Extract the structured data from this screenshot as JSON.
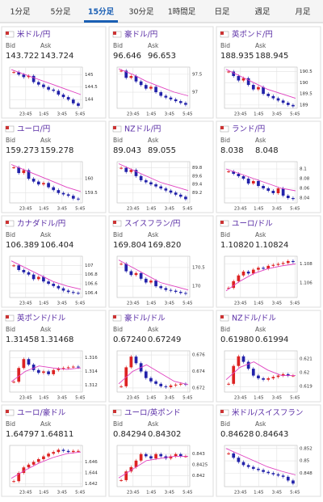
{
  "tabs": [
    "1分足",
    "5分足",
    "15分足",
    "30分足",
    "1時間足",
    "日足",
    "週足",
    "月足"
  ],
  "active_tab": 2,
  "labels": {
    "bid": "Bid",
    "ask": "Ask"
  },
  "x_labels": [
    "23:45",
    "1:45",
    "3:45",
    "5:45"
  ],
  "cards": [
    {
      "title": "米ドル/円",
      "bid": "143.722",
      "ask": "143.724",
      "ylim": [
        143.65,
        145.3
      ],
      "yticks": [
        145,
        144.5,
        144
      ],
      "closes": [
        145.1,
        145.0,
        144.9,
        144.95,
        144.7,
        144.6,
        144.5,
        144.4,
        144.35,
        144.2,
        144.1,
        144.0,
        143.85,
        143.75
      ],
      "ma": [
        145.2,
        145.0,
        144.8,
        144.6,
        144.4,
        144.2
      ]
    },
    {
      "title": "豪ドル/円",
      "bid": "96.646",
      "ask": "96.653",
      "ylim": [
        96.55,
        97.7
      ],
      "yticks": [
        97.5,
        97
      ],
      "closes": [
        97.6,
        97.4,
        97.45,
        97.3,
        97.2,
        97.1,
        97.15,
        97.0,
        96.9,
        96.85,
        96.8,
        96.75,
        96.7,
        96.65
      ],
      "ma": [
        97.65,
        97.5,
        97.3,
        97.15,
        97.0,
        96.9
      ]
    },
    {
      "title": "英ポンド/円",
      "bid": "188.935",
      "ask": "188.945",
      "ylim": [
        188.85,
        190.7
      ],
      "yticks": [
        190.5,
        190,
        189.5,
        189
      ],
      "closes": [
        190.5,
        190.3,
        190.1,
        190.2,
        189.9,
        189.7,
        189.8,
        189.5,
        189.4,
        189.3,
        189.2,
        189.1,
        189.0,
        188.94
      ],
      "ma": [
        190.6,
        190.3,
        190.0,
        189.7,
        189.5,
        189.3
      ]
    },
    {
      "title": "ユーロ/円",
      "bid": "159.273",
      "ask": "159.278",
      "ylim": [
        159.15,
        160.6
      ],
      "yticks": [
        160,
        159.5
      ],
      "closes": [
        160.4,
        160.2,
        160.3,
        160.0,
        159.9,
        159.8,
        159.85,
        159.7,
        159.6,
        159.5,
        159.45,
        159.4,
        159.3,
        159.27
      ],
      "ma": [
        160.5,
        160.3,
        160.1,
        159.9,
        159.7,
        159.55
      ]
    },
    {
      "title": "NZドル/円",
      "bid": "89.043",
      "ask": "89.055",
      "ylim": [
        88.95,
        89.95
      ],
      "yticks": [
        89.8,
        89.6,
        89.4,
        89.2
      ],
      "closes": [
        89.8,
        89.7,
        89.75,
        89.6,
        89.5,
        89.45,
        89.4,
        89.35,
        89.3,
        89.25,
        89.2,
        89.15,
        89.1,
        89.04
      ],
      "ma": [
        89.9,
        89.75,
        89.6,
        89.45,
        89.35,
        89.25
      ]
    },
    {
      "title": "ランド/円",
      "bid": "8.038",
      "ask": "8.048",
      "ylim": [
        8.03,
        8.115
      ],
      "yticks": [
        8.1,
        8.08,
        8.06,
        8.04
      ],
      "closes": [
        8.095,
        8.09,
        8.085,
        8.08,
        8.07,
        8.075,
        8.065,
        8.06,
        8.055,
        8.05,
        8.06,
        8.045,
        8.04,
        8.038
      ],
      "ma": [
        8.1,
        8.09,
        8.08,
        8.07,
        8.06,
        8.055
      ]
    },
    {
      "title": "カナダドル/円",
      "bid": "106.389",
      "ask": "106.404",
      "ylim": [
        106.3,
        107.2
      ],
      "yticks": [
        107,
        106.8,
        106.6,
        106.4
      ],
      "closes": [
        107.0,
        106.9,
        106.85,
        106.8,
        106.7,
        106.75,
        106.65,
        106.6,
        106.55,
        106.5,
        106.45,
        106.42,
        106.4,
        106.39
      ],
      "ma": [
        107.1,
        106.95,
        106.8,
        106.65,
        106.55,
        106.48
      ]
    },
    {
      "title": "スイスフラン/円",
      "bid": "169.804",
      "ask": "169.820",
      "ylim": [
        169.7,
        170.8
      ],
      "yticks": [
        170.5,
        170
      ],
      "closes": [
        170.6,
        170.4,
        170.3,
        170.35,
        170.2,
        170.1,
        170.15,
        170.0,
        169.95,
        169.9,
        169.88,
        169.85,
        169.82,
        169.8
      ],
      "ma": [
        170.7,
        170.5,
        170.3,
        170.1,
        170.0,
        169.9
      ]
    },
    {
      "title": "ユーロ/ドル",
      "bid": "1.10820",
      "ask": "1.10824",
      "ylim": [
        1.1045,
        1.1088
      ],
      "yticks": [
        1.108,
        1.106
      ],
      "closes": [
        1.1055,
        1.1062,
        1.1068,
        1.1072,
        1.107,
        1.1074,
        1.1076,
        1.1075,
        1.1078,
        1.1079,
        1.108,
        1.1081,
        1.1083,
        1.1082
      ],
      "ma": [
        1.1052,
        1.1062,
        1.107,
        1.1075,
        1.1078,
        1.108
      ]
    },
    {
      "title": "英ポンド/ドル",
      "bid": "1.31458",
      "ask": "1.31468",
      "ylim": [
        1.311,
        1.317
      ],
      "yticks": [
        1.316,
        1.314,
        1.312
      ],
      "closes": [
        1.3125,
        1.3145,
        1.3158,
        1.315,
        1.3142,
        1.3138,
        1.314,
        1.3136,
        1.3142,
        1.3144,
        1.3145,
        1.3146,
        1.3147,
        1.3146
      ],
      "ma": [
        1.3125,
        1.314,
        1.3148,
        1.3145,
        1.3143,
        1.3145
      ]
    },
    {
      "title": "豪ドル/ドル",
      "bid": "0.67240",
      "ask": "0.67249",
      "ylim": [
        0.6715,
        0.6765
      ],
      "yticks": [
        0.676,
        0.674,
        0.672
      ],
      "closes": [
        0.6722,
        0.6745,
        0.6758,
        0.675,
        0.674,
        0.6732,
        0.6728,
        0.6725,
        0.6722,
        0.6721,
        0.6723,
        0.6724,
        0.6725,
        0.6724
      ],
      "ma": [
        0.6725,
        0.674,
        0.6748,
        0.6738,
        0.6728,
        0.6724
      ]
    },
    {
      "title": "NZドル/ドル",
      "bid": "0.61980",
      "ask": "0.61994",
      "ylim": [
        0.6186,
        0.6216
      ],
      "yticks": [
        0.621,
        0.62,
        0.619
      ],
      "closes": [
        0.6192,
        0.6205,
        0.6212,
        0.6208,
        0.6203,
        0.6198,
        0.6196,
        0.6195,
        0.6196,
        0.6197,
        0.6198,
        0.6199,
        0.6198,
        0.6198
      ],
      "ma": [
        0.6195,
        0.6204,
        0.6208,
        0.6202,
        0.6198,
        0.6198
      ]
    },
    {
      "title": "ユーロ/豪ドル",
      "bid": "1.64797",
      "ask": "1.64811",
      "ylim": [
        1.6415,
        1.649
      ],
      "yticks": [
        1.646,
        1.644,
        1.642
      ],
      "closes": [
        1.6425,
        1.644,
        1.645,
        1.6455,
        1.646,
        1.6465,
        1.647,
        1.6475,
        1.6478,
        1.6482,
        1.648,
        1.6478,
        1.648,
        1.648
      ],
      "ma": [
        1.643,
        1.6445,
        1.6458,
        1.6468,
        1.6475,
        1.6478
      ]
    },
    {
      "title": "ユーロ/英ポンド",
      "bid": "0.84294",
      "ask": "0.84302",
      "ylim": [
        0.8415,
        0.8434
      ],
      "yticks": [
        0.843,
        0.8425,
        0.842
      ],
      "closes": [
        0.8418,
        0.8422,
        0.8424,
        0.8427,
        0.843,
        0.8429,
        0.8428,
        0.843,
        0.8429,
        0.8428,
        0.8429,
        0.843,
        0.8429,
        0.8429
      ],
      "ma": [
        0.8419,
        0.8423,
        0.8427,
        0.8428,
        0.8429,
        0.8429
      ]
    },
    {
      "title": "米ドル/スイスフラン",
      "bid": "0.84628",
      "ask": "0.84643",
      "ylim": [
        0.8458,
        0.8525
      ],
      "yticks": [
        0.852,
        0.85,
        0.848
      ],
      "closes": [
        0.8512,
        0.8505,
        0.8498,
        0.8493,
        0.849,
        0.8487,
        0.8485,
        0.8482,
        0.848,
        0.8478,
        0.8476,
        0.8474,
        0.8468,
        0.8463
      ],
      "ma": [
        0.852,
        0.851,
        0.85,
        0.849,
        0.8483,
        0.8477
      ]
    }
  ]
}
